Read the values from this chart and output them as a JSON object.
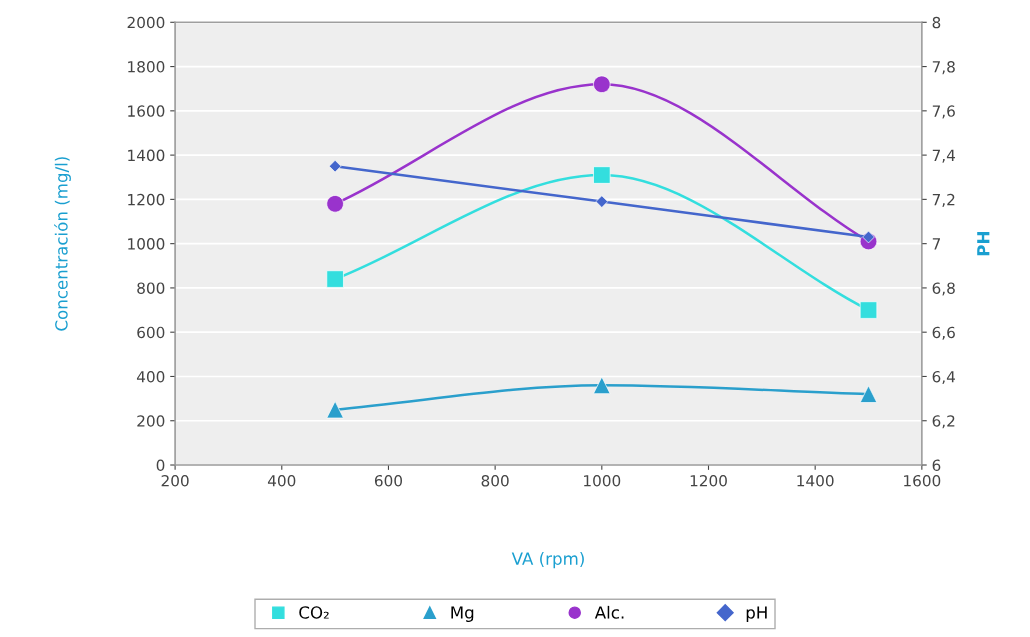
{
  "chart_data": {
    "type": "line",
    "xlabel": "VA (rpm)",
    "ylabel": "Concentración (mg/l)",
    "y2label": "PH",
    "x": [
      500,
      1000,
      1500
    ],
    "series": [
      {
        "name": "CO₂",
        "color": "#33dede",
        "marker": "square",
        "values": [
          840,
          1310,
          700
        ]
      },
      {
        "name": "Mg",
        "color": "#2a9fcc",
        "marker": "triangle",
        "values": [
          250,
          360,
          320
        ]
      },
      {
        "name": "Alc.",
        "color": "#9933cc",
        "marker": "circle",
        "values": [
          1180,
          1720,
          1010
        ]
      },
      {
        "name": "pH",
        "color": "#4466cc",
        "marker": "diamond",
        "axis": "y2",
        "values": [
          7.35,
          7.19,
          7.03
        ]
      }
    ],
    "xlim": [
      200,
      1600
    ],
    "xticks": [
      200,
      400,
      600,
      800,
      1000,
      1200,
      1400,
      1600
    ],
    "ylim": [
      0,
      2000
    ],
    "yticks": [
      0,
      200,
      400,
      600,
      800,
      1000,
      1200,
      1400,
      1600,
      1800,
      2000
    ],
    "y2lim": [
      6,
      8
    ],
    "y2ticks": [
      6,
      {
        "value": 6.2,
        "label": "6,2"
      },
      {
        "value": 6.4,
        "label": "6,4"
      },
      {
        "value": 6.6,
        "label": "6,6"
      },
      {
        "value": 6.8,
        "label": "6,8"
      },
      7,
      {
        "value": 7.2,
        "label": "7,2"
      },
      {
        "value": 7.4,
        "label": "7,4"
      },
      {
        "value": 7.6,
        "label": "7,6"
      },
      {
        "value": 7.8,
        "label": "7,8"
      },
      8
    ],
    "grid": "y",
    "legend": "bottom"
  }
}
